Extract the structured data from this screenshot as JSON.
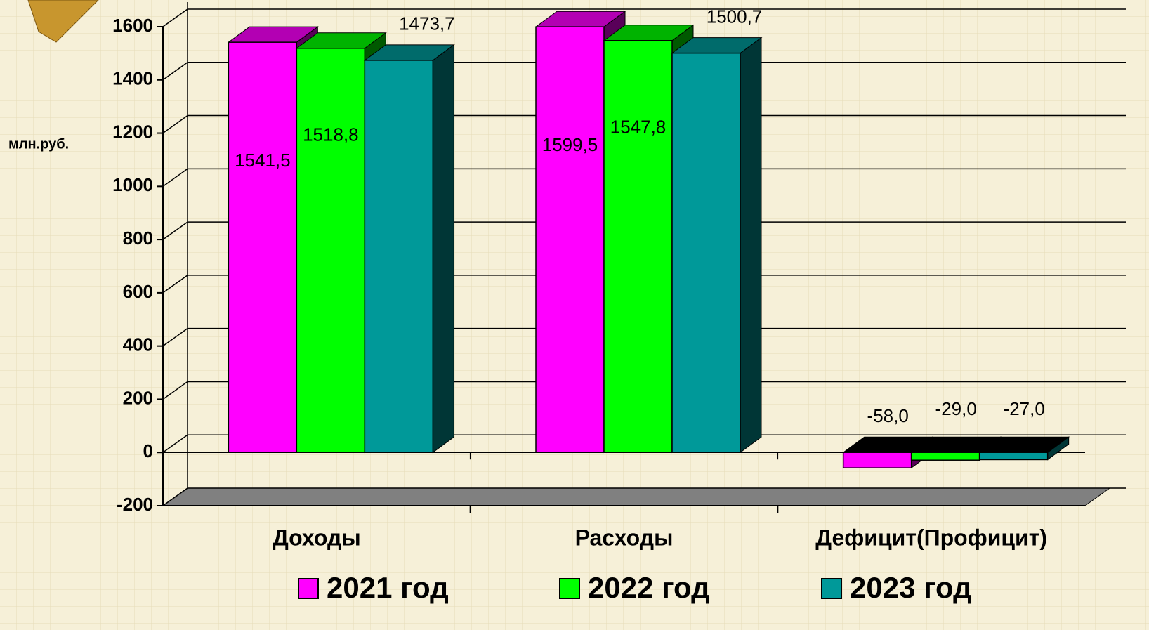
{
  "chart_data": {
    "type": "bar3d",
    "y_label": "млн.руб.",
    "categories": [
      "Доходы",
      "Расходы",
      "Дефицит(Профицит)"
    ],
    "series": [
      {
        "name": "2021 год",
        "color": "#ff00ff",
        "values": [
          1541.5,
          1599.5,
          -58.0
        ],
        "value_labels": [
          "1541,5",
          "1599,5",
          "-58,0"
        ]
      },
      {
        "name": "2022 год",
        "color": "#00ff00",
        "values": [
          1518.8,
          1547.8,
          -29.0
        ],
        "value_labels": [
          "1518,8",
          "1547,8",
          "-29,0"
        ]
      },
      {
        "name": "2023 год",
        "color": "#009999",
        "values": [
          1473.7,
          1500.7,
          -27.0
        ],
        "value_labels": [
          "1473,7",
          "1500,7",
          "-27,0"
        ]
      }
    ],
    "ylim": [
      -200,
      1600
    ],
    "yticks": [
      -200,
      0,
      200,
      400,
      600,
      800,
      1000,
      1200,
      1400,
      1600
    ],
    "grid": true
  }
}
